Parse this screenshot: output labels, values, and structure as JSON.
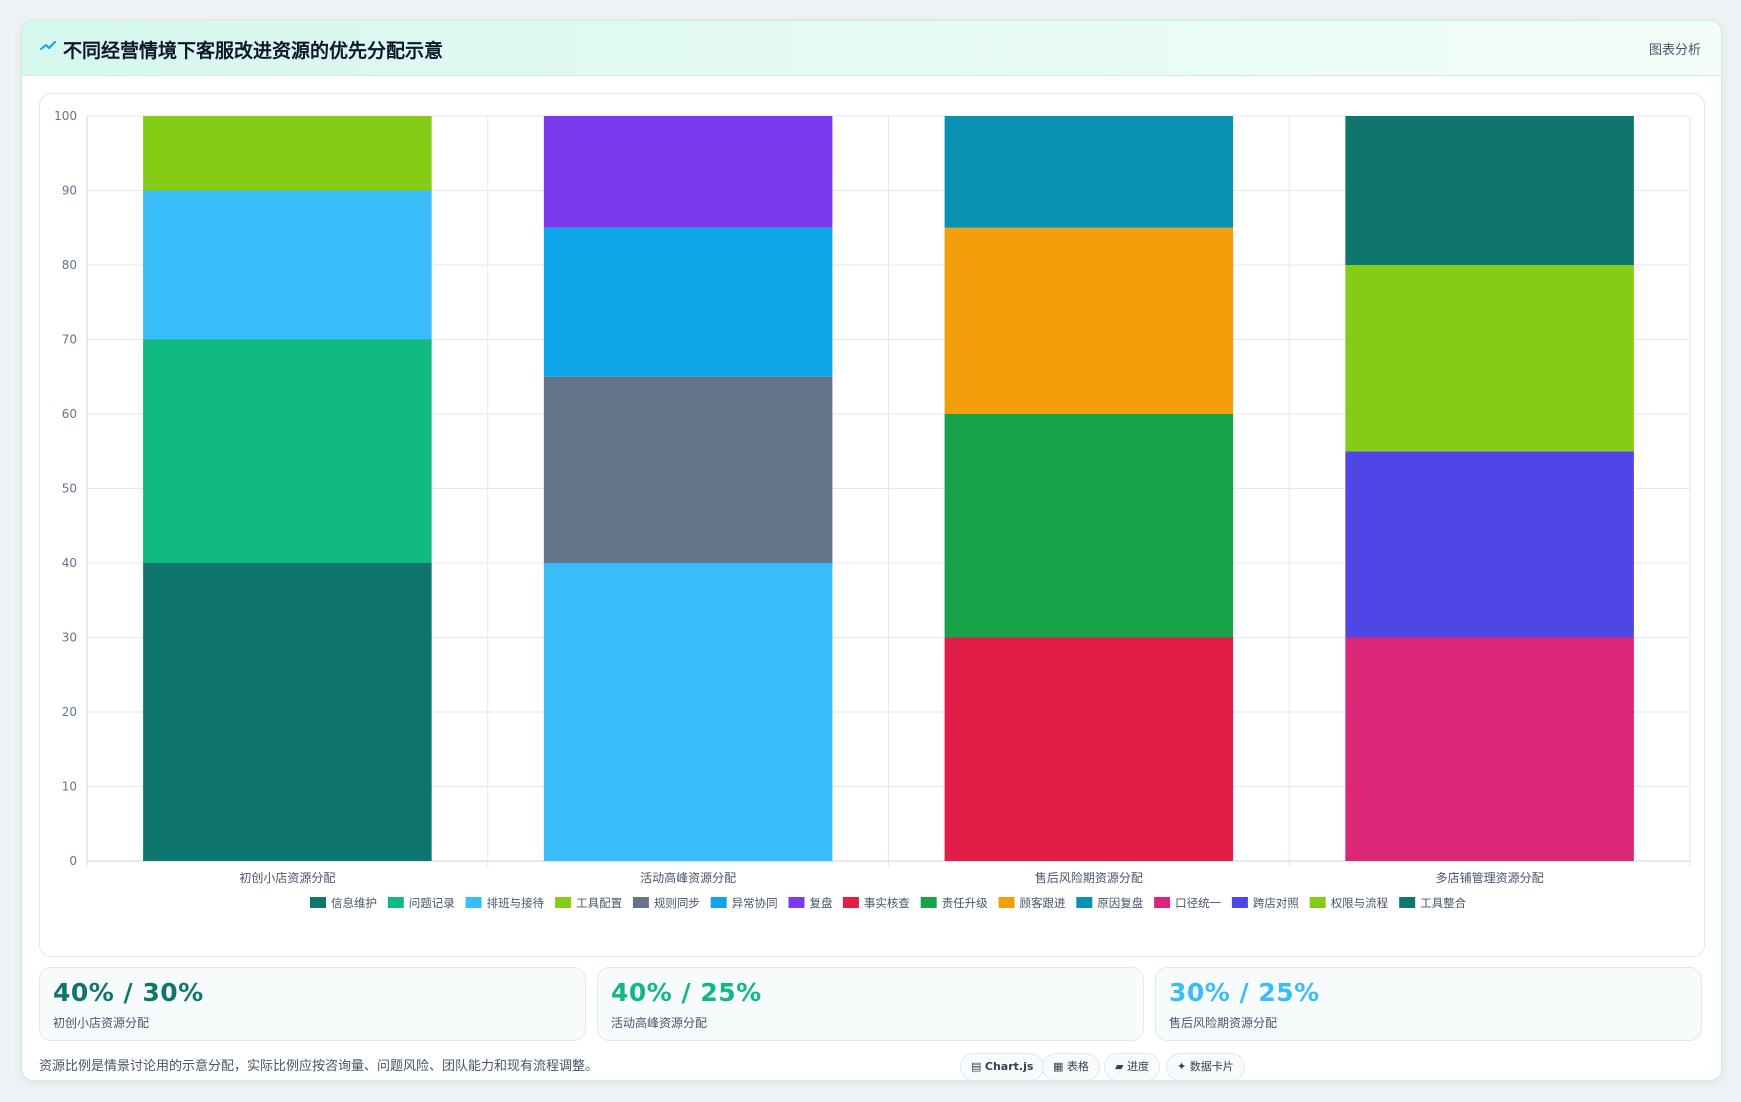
{
  "header": {
    "title": "不同经营情境下客服改进资源的优先分配示意",
    "action_label": "图表分析",
    "icon": "trend-line-icon"
  },
  "chart_data": {
    "type": "bar",
    "stacked": true,
    "title": "",
    "xlabel": "",
    "ylabel": "",
    "ylim": [
      0,
      100
    ],
    "yticks": [
      0,
      10,
      20,
      30,
      40,
      50,
      60,
      70,
      80,
      90,
      100
    ],
    "grid": true,
    "legend_position": "bottom",
    "categories": [
      "初创小店资源分配",
      "活动高峰资源分配",
      "售后风险期资源分配",
      "多店铺管理资源分配"
    ],
    "series": [
      {
        "name": "信息维护",
        "color": "#0f766e",
        "values": [
          40,
          0,
          0,
          0
        ]
      },
      {
        "name": "问题记录",
        "color": "#10b981",
        "values": [
          30,
          0,
          0,
          0
        ]
      },
      {
        "name": "排班与接待",
        "color": "#38bdf8",
        "values": [
          20,
          40,
          0,
          0
        ]
      },
      {
        "name": "工具配置",
        "color": "#84cc16",
        "values": [
          10,
          0,
          0,
          0
        ]
      },
      {
        "name": "规则同步",
        "color": "#64748b",
        "values": [
          0,
          25,
          0,
          0
        ]
      },
      {
        "name": "异常协同",
        "color": "#0ea5e9",
        "values": [
          0,
          20,
          0,
          0
        ]
      },
      {
        "name": "复盘",
        "color": "#7c3aed",
        "values": [
          0,
          15,
          0,
          0
        ]
      },
      {
        "name": "事实核查",
        "color": "#e11d48",
        "values": [
          0,
          0,
          30,
          0
        ]
      },
      {
        "name": "责任升级",
        "color": "#16a34a",
        "values": [
          0,
          0,
          30,
          0
        ]
      },
      {
        "name": "顾客跟进",
        "color": "#f59e0b",
        "values": [
          0,
          0,
          25,
          0
        ]
      },
      {
        "name": "原因复盘",
        "color": "#0891b2",
        "values": [
          0,
          0,
          15,
          0
        ]
      },
      {
        "name": "口径统一",
        "color": "#db2777",
        "values": [
          0,
          0,
          0,
          30
        ]
      },
      {
        "name": "跨店对照",
        "color": "#4f46e5",
        "values": [
          0,
          0,
          0,
          25
        ]
      },
      {
        "name": "权限与流程",
        "color": "#84cc16",
        "values": [
          0,
          0,
          0,
          25
        ]
      },
      {
        "name": "工具整合",
        "color": "#0f766e",
        "values": [
          0,
          0,
          0,
          20
        ]
      }
    ]
  },
  "stats": [
    {
      "value": "40% / 30%",
      "label": "初创小店资源分配",
      "color": "#0f766e"
    },
    {
      "value": "40% / 25%",
      "label": "活动高峰资源分配",
      "color": "#10b981"
    },
    {
      "value": "30% / 25%",
      "label": "售后风险期资源分配",
      "color": "#38bdf8"
    }
  ],
  "footer": {
    "note": "资源比例是情景讨论用的示意分配，实际比例应按咨询量、问题风险、团队能力和现有流程调整。",
    "tags": [
      {
        "icon": "chart-icon",
        "label": "Chart.js"
      },
      {
        "icon": "table-icon",
        "label": "表格"
      },
      {
        "icon": "progress-icon",
        "label": "进度"
      },
      {
        "icon": "sparkle-icon",
        "label": "数据卡片"
      }
    ]
  }
}
